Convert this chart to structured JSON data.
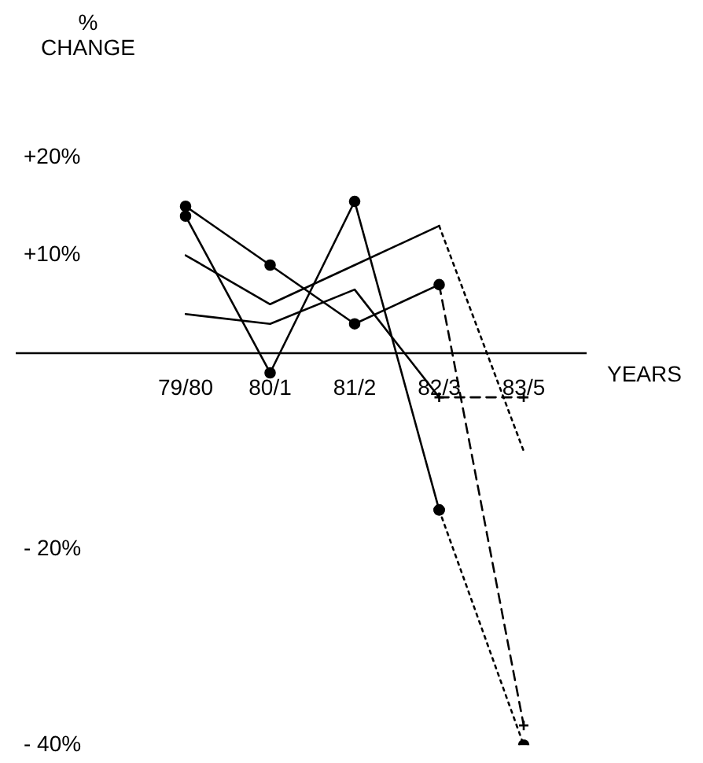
{
  "chart_data": {
    "type": "line",
    "ylabel": "% CHANGE",
    "xlabel": "YEARS",
    "categories": [
      "79/80",
      "80/1",
      "81/2",
      "82/3",
      "83/5"
    ],
    "ylim": [
      -40,
      20
    ],
    "yticks": [
      {
        "value": 20,
        "label": "+20%"
      },
      {
        "value": 10,
        "label": "+10%"
      },
      {
        "value": 0,
        "label": null
      },
      {
        "value": -20,
        "label": "- 20%"
      },
      {
        "value": -40,
        "label": "- 40%"
      }
    ],
    "grid": false,
    "legend": false,
    "series": [
      {
        "color": "#000000",
        "values": [
          15,
          9,
          3,
          7,
          null
        ],
        "marker": "circle",
        "line_style": "solid"
      },
      {
        "color": "#000000",
        "values": [
          null,
          null,
          null,
          7,
          -38
        ],
        "marker": "cross",
        "line_style": "dashed"
      },
      {
        "color": "#000000",
        "values": [
          14,
          -2,
          15.5,
          -16,
          null
        ],
        "marker": "circle",
        "line_style": "solid"
      },
      {
        "color": "#000000",
        "values": [
          null,
          null,
          null,
          -16,
          -40
        ],
        "marker": "circle",
        "line_style": "dotted"
      },
      {
        "color": "#000000",
        "values": [
          10,
          5,
          9,
          13,
          null
        ],
        "marker": "none",
        "line_style": "solid"
      },
      {
        "color": "#000000",
        "values": [
          null,
          null,
          null,
          13,
          -10
        ],
        "marker": "none",
        "line_style": "dotted"
      },
      {
        "color": "#000000",
        "values": [
          4,
          3,
          6.5,
          -4.5,
          null
        ],
        "marker": "none",
        "line_style": "solid"
      },
      {
        "color": "#000000",
        "values": [
          null,
          null,
          null,
          -4.5,
          -4.5
        ],
        "marker": "cross",
        "line_style": "dashed"
      }
    ]
  }
}
